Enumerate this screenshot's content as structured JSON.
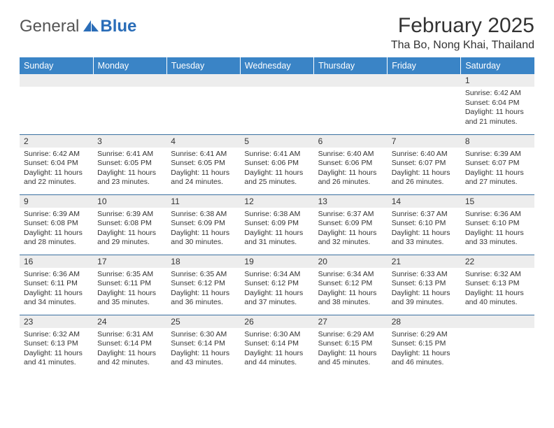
{
  "logo": {
    "general": "General",
    "blue": "Blue"
  },
  "title": "February 2025",
  "location": "Tha Bo, Nong Khai, Thailand",
  "colors": {
    "header_bg": "#3a84c6",
    "header_text": "#ffffff",
    "daynum_bg": "#ededed",
    "grid_line": "#3a70a0",
    "text": "#333333",
    "logo_blue": "#2a6db8"
  },
  "weekdays": [
    "Sunday",
    "Monday",
    "Tuesday",
    "Wednesday",
    "Thursday",
    "Friday",
    "Saturday"
  ],
  "weeks": [
    [
      null,
      null,
      null,
      null,
      null,
      null,
      {
        "n": "1",
        "sr": "6:42 AM",
        "ss": "6:04 PM",
        "dl": "11 hours and 21 minutes."
      }
    ],
    [
      {
        "n": "2",
        "sr": "6:42 AM",
        "ss": "6:04 PM",
        "dl": "11 hours and 22 minutes."
      },
      {
        "n": "3",
        "sr": "6:41 AM",
        "ss": "6:05 PM",
        "dl": "11 hours and 23 minutes."
      },
      {
        "n": "4",
        "sr": "6:41 AM",
        "ss": "6:05 PM",
        "dl": "11 hours and 24 minutes."
      },
      {
        "n": "5",
        "sr": "6:41 AM",
        "ss": "6:06 PM",
        "dl": "11 hours and 25 minutes."
      },
      {
        "n": "6",
        "sr": "6:40 AM",
        "ss": "6:06 PM",
        "dl": "11 hours and 26 minutes."
      },
      {
        "n": "7",
        "sr": "6:40 AM",
        "ss": "6:07 PM",
        "dl": "11 hours and 26 minutes."
      },
      {
        "n": "8",
        "sr": "6:39 AM",
        "ss": "6:07 PM",
        "dl": "11 hours and 27 minutes."
      }
    ],
    [
      {
        "n": "9",
        "sr": "6:39 AM",
        "ss": "6:08 PM",
        "dl": "11 hours and 28 minutes."
      },
      {
        "n": "10",
        "sr": "6:39 AM",
        "ss": "6:08 PM",
        "dl": "11 hours and 29 minutes."
      },
      {
        "n": "11",
        "sr": "6:38 AM",
        "ss": "6:09 PM",
        "dl": "11 hours and 30 minutes."
      },
      {
        "n": "12",
        "sr": "6:38 AM",
        "ss": "6:09 PM",
        "dl": "11 hours and 31 minutes."
      },
      {
        "n": "13",
        "sr": "6:37 AM",
        "ss": "6:09 PM",
        "dl": "11 hours and 32 minutes."
      },
      {
        "n": "14",
        "sr": "6:37 AM",
        "ss": "6:10 PM",
        "dl": "11 hours and 33 minutes."
      },
      {
        "n": "15",
        "sr": "6:36 AM",
        "ss": "6:10 PM",
        "dl": "11 hours and 33 minutes."
      }
    ],
    [
      {
        "n": "16",
        "sr": "6:36 AM",
        "ss": "6:11 PM",
        "dl": "11 hours and 34 minutes."
      },
      {
        "n": "17",
        "sr": "6:35 AM",
        "ss": "6:11 PM",
        "dl": "11 hours and 35 minutes."
      },
      {
        "n": "18",
        "sr": "6:35 AM",
        "ss": "6:12 PM",
        "dl": "11 hours and 36 minutes."
      },
      {
        "n": "19",
        "sr": "6:34 AM",
        "ss": "6:12 PM",
        "dl": "11 hours and 37 minutes."
      },
      {
        "n": "20",
        "sr": "6:34 AM",
        "ss": "6:12 PM",
        "dl": "11 hours and 38 minutes."
      },
      {
        "n": "21",
        "sr": "6:33 AM",
        "ss": "6:13 PM",
        "dl": "11 hours and 39 minutes."
      },
      {
        "n": "22",
        "sr": "6:32 AM",
        "ss": "6:13 PM",
        "dl": "11 hours and 40 minutes."
      }
    ],
    [
      {
        "n": "23",
        "sr": "6:32 AM",
        "ss": "6:13 PM",
        "dl": "11 hours and 41 minutes."
      },
      {
        "n": "24",
        "sr": "6:31 AM",
        "ss": "6:14 PM",
        "dl": "11 hours and 42 minutes."
      },
      {
        "n": "25",
        "sr": "6:30 AM",
        "ss": "6:14 PM",
        "dl": "11 hours and 43 minutes."
      },
      {
        "n": "26",
        "sr": "6:30 AM",
        "ss": "6:14 PM",
        "dl": "11 hours and 44 minutes."
      },
      {
        "n": "27",
        "sr": "6:29 AM",
        "ss": "6:15 PM",
        "dl": "11 hours and 45 minutes."
      },
      {
        "n": "28",
        "sr": "6:29 AM",
        "ss": "6:15 PM",
        "dl": "11 hours and 46 minutes."
      },
      null
    ]
  ],
  "labels": {
    "sunrise": "Sunrise: ",
    "sunset": "Sunset: ",
    "daylight": "Daylight: "
  }
}
